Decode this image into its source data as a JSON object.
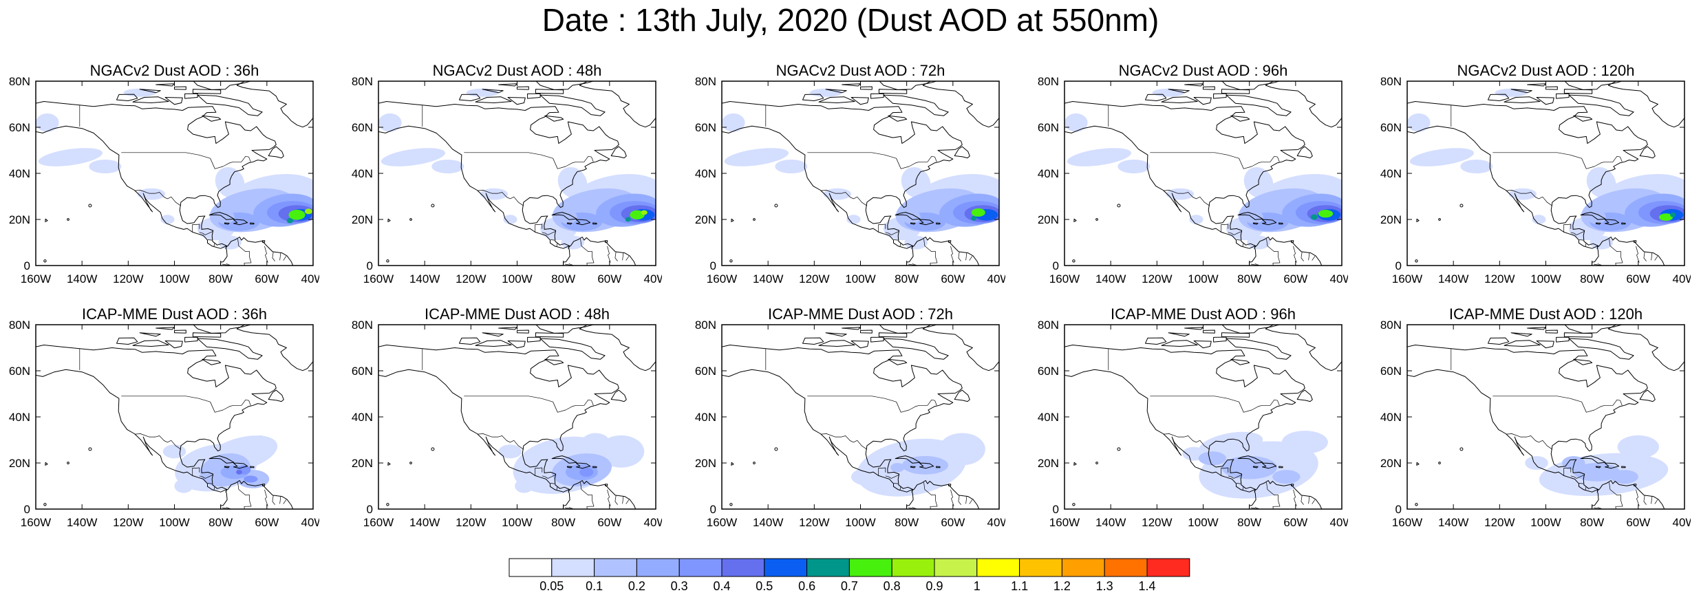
{
  "figure": {
    "title": "Date : 13th July, 2020 (Dust AOD at 550nm)",
    "colors": {
      "coast": "#000000",
      "frame": "#000000",
      "background": "#ffffff"
    }
  },
  "axes": {
    "x_ticks": [
      "160W",
      "140W",
      "120W",
      "100W",
      "80W",
      "60W",
      "40W"
    ],
    "x_values": [
      -160,
      -140,
      -120,
      -100,
      -80,
      -60,
      -40
    ],
    "y_ticks": [
      "0",
      "20N",
      "40N",
      "60N",
      "80N"
    ],
    "y_values": [
      0,
      20,
      40,
      60,
      80
    ],
    "lon_range": [
      -160,
      -40
    ],
    "lat_range": [
      0,
      80
    ]
  },
  "panels": [
    {
      "title": "NGACv2 Dust AOD : 36h",
      "model": "ngac",
      "lead": 36
    },
    {
      "title": "NGACv2 Dust AOD : 48h",
      "model": "ngac",
      "lead": 48
    },
    {
      "title": "NGACv2 Dust AOD : 72h",
      "model": "ngac",
      "lead": 72
    },
    {
      "title": "NGACv2 Dust AOD : 96h",
      "model": "ngac",
      "lead": 96
    },
    {
      "title": "NGACv2 Dust AOD : 120h",
      "model": "ngac",
      "lead": 120
    },
    {
      "title": "ICAP-MME Dust AOD : 36h",
      "model": "icap",
      "lead": 36
    },
    {
      "title": "ICAP-MME Dust AOD : 48h",
      "model": "icap",
      "lead": 48
    },
    {
      "title": "ICAP-MME Dust AOD : 72h",
      "model": "icap",
      "lead": 72
    },
    {
      "title": "ICAP-MME Dust AOD : 96h",
      "model": "icap",
      "lead": 96
    },
    {
      "title": "ICAP-MME Dust AOD : 120h",
      "model": "icap",
      "lead": 120
    }
  ],
  "colorbar": {
    "labels": [
      "0.05",
      "0.1",
      "0.2",
      "0.3",
      "0.4",
      "0.5",
      "0.6",
      "0.7",
      "0.8",
      "0.9",
      "1",
      "1.1",
      "1.2",
      "1.3",
      "1.4"
    ],
    "colors": [
      "#ffffff",
      "#d4deff",
      "#b0c2ff",
      "#94acff",
      "#8096ff",
      "#6470ee",
      "#0a5ff2",
      "#00968a",
      "#48f00e",
      "#98f00c",
      "#c6f24a",
      "#ffff00",
      "#ffc200",
      "#ff9f00",
      "#ff7200",
      "#ff2a20"
    ]
  }
}
